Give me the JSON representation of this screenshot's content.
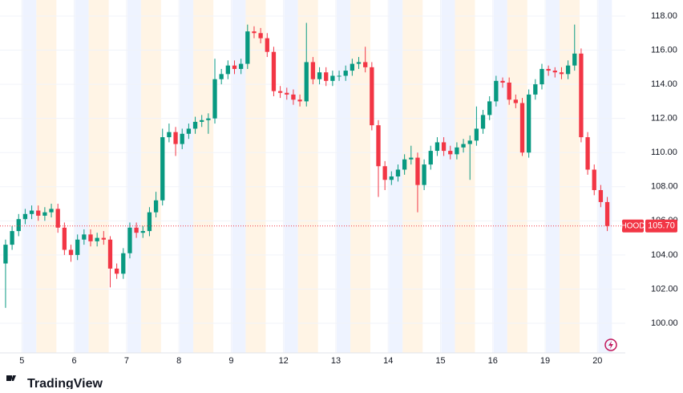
{
  "chart_data": {
    "type": "candlestick",
    "symbol": "HOOD",
    "last_price": {
      "value": 105.7,
      "label": "105.70"
    },
    "up_color": "#089981",
    "down_color": "#f23645",
    "open": [
      103.5,
      104.6,
      105.4,
      106.1,
      106.4,
      106.6,
      106.3,
      106.5,
      106.7,
      105.6,
      104.3,
      104.0,
      104.9,
      105.2,
      104.8,
      105.0,
      104.9,
      103.2,
      102.9,
      104.1,
      105.6,
      105.3,
      105.4,
      106.5,
      107.2,
      110.9,
      111.2,
      110.5,
      111.1,
      111.4,
      111.8,
      111.9,
      112.0,
      114.3,
      114.6,
      115.1,
      114.9,
      115.2,
      117.1,
      117.0,
      116.7,
      115.9,
      113.6,
      113.5,
      113.4,
      113.1,
      113.0,
      115.3,
      114.3,
      114.7,
      114.2,
      114.5,
      114.5,
      114.8,
      115.2,
      115.3,
      115.0,
      111.6,
      109.2,
      108.4,
      108.6,
      109.0,
      109.6,
      109.7,
      108.1,
      109.3,
      110.1,
      110.6,
      110.1,
      109.9,
      110.3,
      110.5,
      110.7,
      111.4,
      112.2,
      113.0,
      114.2,
      114.1,
      113.1,
      112.9,
      110.0,
      113.4,
      114.0,
      114.9,
      114.8,
      114.7,
      114.6,
      115.1,
      115.8,
      110.9,
      109.0,
      107.8,
      107.1
    ],
    "high": [
      104.9,
      105.7,
      106.4,
      106.7,
      106.9,
      106.9,
      106.8,
      107.0,
      107.0,
      105.9,
      104.6,
      105.2,
      105.5,
      105.5,
      105.3,
      105.4,
      105.1,
      103.5,
      104.4,
      105.9,
      105.9,
      105.7,
      106.8,
      107.7,
      111.4,
      111.7,
      111.5,
      111.4,
      111.7,
      112.1,
      112.2,
      112.3,
      115.5,
      114.9,
      115.4,
      115.4,
      115.5,
      117.5,
      117.4,
      117.3,
      117.0,
      116.2,
      113.9,
      113.8,
      113.7,
      113.4,
      117.6,
      115.6,
      115.0,
      115.0,
      114.8,
      114.8,
      115.1,
      115.5,
      115.6,
      116.2,
      115.3,
      111.9,
      109.5,
      108.9,
      109.3,
      109.9,
      110.4,
      110.0,
      109.6,
      110.4,
      110.9,
      110.9,
      110.4,
      110.6,
      110.8,
      111.0,
      112.7,
      112.5,
      113.3,
      114.5,
      114.4,
      114.4,
      113.4,
      113.2,
      113.7,
      114.3,
      115.2,
      115.1,
      115.0,
      115.0,
      115.4,
      117.5,
      116.1,
      111.2,
      109.3,
      108.1,
      107.4
    ],
    "low": [
      100.9,
      104.3,
      105.1,
      105.8,
      106.1,
      106.0,
      106.0,
      106.2,
      105.3,
      104.0,
      103.6,
      103.7,
      104.6,
      104.5,
      104.5,
      104.6,
      102.1,
      102.6,
      102.6,
      103.8,
      105.0,
      105.0,
      105.1,
      106.2,
      106.9,
      110.6,
      109.8,
      110.2,
      110.8,
      111.1,
      111.5,
      111.1,
      111.7,
      114.0,
      114.3,
      114.6,
      114.6,
      114.9,
      116.7,
      116.4,
      115.6,
      113.3,
      113.2,
      113.1,
      112.8,
      112.7,
      112.7,
      114.0,
      114.0,
      113.9,
      113.9,
      114.2,
      114.2,
      114.5,
      114.9,
      114.7,
      111.3,
      107.4,
      107.8,
      108.1,
      108.3,
      108.7,
      109.3,
      106.5,
      107.8,
      109.0,
      109.8,
      109.8,
      109.6,
      109.6,
      110.0,
      108.4,
      110.4,
      111.1,
      111.9,
      112.7,
      113.8,
      112.8,
      112.6,
      109.8,
      109.7,
      113.1,
      113.7,
      114.5,
      114.4,
      114.3,
      114.3,
      114.8,
      110.6,
      108.7,
      107.5,
      106.8,
      105.4
    ],
    "close": [
      104.6,
      105.4,
      106.1,
      106.4,
      106.6,
      106.3,
      106.5,
      106.7,
      105.6,
      104.3,
      104.0,
      104.9,
      105.2,
      104.8,
      105.0,
      104.9,
      103.2,
      102.9,
      104.1,
      105.6,
      105.3,
      105.4,
      106.5,
      107.2,
      110.9,
      111.2,
      110.5,
      111.1,
      111.4,
      111.8,
      111.9,
      112.0,
      114.3,
      114.6,
      115.1,
      114.9,
      115.2,
      117.1,
      117.0,
      116.7,
      115.9,
      113.6,
      113.5,
      113.4,
      113.1,
      113.0,
      115.3,
      114.3,
      114.7,
      114.2,
      114.5,
      114.5,
      114.8,
      115.2,
      115.3,
      115.0,
      111.6,
      109.2,
      108.4,
      108.6,
      109.0,
      109.6,
      109.7,
      108.1,
      109.3,
      110.1,
      110.6,
      110.1,
      109.9,
      110.3,
      110.5,
      110.7,
      111.4,
      112.2,
      113.0,
      114.2,
      114.1,
      113.1,
      112.9,
      110.0,
      113.4,
      114.0,
      114.9,
      114.8,
      114.7,
      114.6,
      115.1,
      115.8,
      110.9,
      109.0,
      107.8,
      107.1,
      105.7
    ],
    "xlim": [
      -0.85,
      94.75
    ],
    "xticks": [
      {
        "value": 2.5,
        "label": "5"
      },
      {
        "value": 10.5,
        "label": "6"
      },
      {
        "value": 18.5,
        "label": "7"
      },
      {
        "value": 26.5,
        "label": "8"
      },
      {
        "value": 34.5,
        "label": "9"
      },
      {
        "value": 42.5,
        "label": "12"
      },
      {
        "value": 50.5,
        "label": "13"
      },
      {
        "value": 58.5,
        "label": "14"
      },
      {
        "value": 66.5,
        "label": "15"
      },
      {
        "value": 74.5,
        "label": "16"
      },
      {
        "value": 82.5,
        "label": "19"
      },
      {
        "value": 90.5,
        "label": "20"
      }
    ],
    "ylim": [
      98.26,
      118.94
    ],
    "yticks": [
      {
        "value": 100,
        "label": "100.00"
      },
      {
        "value": 102,
        "label": "102.00"
      },
      {
        "value": 104,
        "label": "104.00"
      },
      {
        "value": 106,
        "label": "106.00"
      },
      {
        "value": 108,
        "label": "108.00"
      },
      {
        "value": 110,
        "label": "110.00"
      },
      {
        "value": 112,
        "label": "112.00"
      },
      {
        "value": 114,
        "label": "114.00"
      },
      {
        "value": 116,
        "label": "116.00"
      },
      {
        "value": 118,
        "label": "118.00"
      }
    ],
    "grid": true,
    "session_shading": true
  },
  "branding": "TradingView"
}
